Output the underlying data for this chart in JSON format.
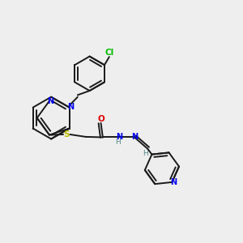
{
  "background_color": "#eeeeee",
  "bond_color": "#1a1a1a",
  "N_color": "#0000ee",
  "O_color": "#dd0000",
  "S_color": "#bbbb00",
  "Cl_color": "#00bb00",
  "H_color": "#558888",
  "figsize": [
    3.0,
    3.0
  ],
  "dpi": 100,
  "xlim": [
    0,
    10
  ],
  "ylim": [
    0,
    10
  ]
}
